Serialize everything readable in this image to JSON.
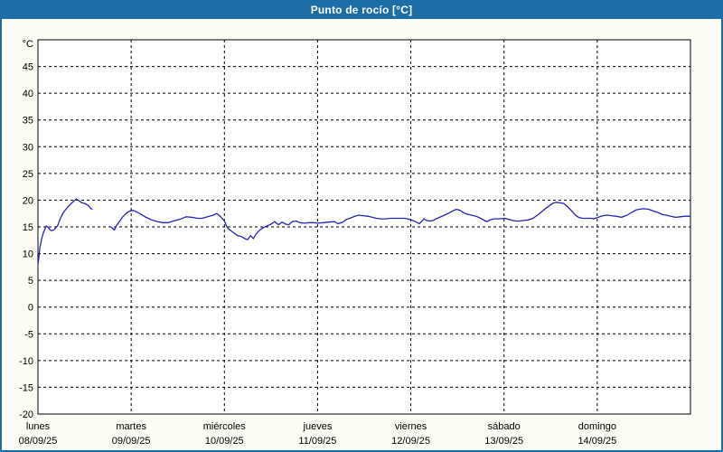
{
  "window": {
    "title": "Punto de rocío [°C]"
  },
  "colors": {
    "titlebar_bg": "#1d6da7",
    "titlebar_text": "#ffffff",
    "page_bg": "#fcfcf5",
    "outer_border": "#1d6da7",
    "plot_bg": "#ffffff",
    "grid": "#000000",
    "line": "#2323b8"
  },
  "chart_data": {
    "type": "line",
    "title": "Punto de rocío [°C]",
    "ylabel_unit": "°C",
    "xlabel": "",
    "ylim": [
      -20,
      50
    ],
    "yticks": [
      45,
      40,
      35,
      30,
      25,
      20,
      15,
      10,
      5,
      0,
      -5,
      -10,
      -15,
      -20
    ],
    "grid": true,
    "x_span_days": 7,
    "categories": [
      {
        "name": "lunes",
        "date": "08/09/25"
      },
      {
        "name": "martes",
        "date": "09/09/25"
      },
      {
        "name": "miércoles",
        "date": "10/09/25"
      },
      {
        "name": "jueves",
        "date": "11/09/25"
      },
      {
        "name": "viernes",
        "date": "12/09/25"
      },
      {
        "name": "sábado",
        "date": "13/09/25"
      },
      {
        "name": "domingo",
        "date": "14/09/25"
      }
    ],
    "series": [
      {
        "name": "punto de rocío",
        "color": "#2323b8",
        "segments": [
          [
            [
              0.0,
              7.9
            ],
            [
              0.01,
              9.3
            ],
            [
              0.02,
              11.1
            ],
            [
              0.04,
              12.8
            ],
            [
              0.06,
              14.0
            ],
            [
              0.09,
              15.2
            ],
            [
              0.11,
              14.9
            ],
            [
              0.14,
              14.3
            ],
            [
              0.17,
              14.4
            ],
            [
              0.21,
              15.2
            ],
            [
              0.24,
              16.6
            ],
            [
              0.27,
              17.6
            ],
            [
              0.3,
              18.3
            ],
            [
              0.33,
              18.9
            ],
            [
              0.37,
              19.6
            ],
            [
              0.41,
              20.2
            ],
            [
              0.44,
              19.9
            ],
            [
              0.47,
              19.5
            ],
            [
              0.5,
              19.4
            ],
            [
              0.54,
              19.0
            ],
            [
              0.57,
              18.4
            ],
            [
              0.58,
              18.3
            ]
          ],
          [
            [
              0.79,
              14.9
            ],
            [
              0.82,
              14.4
            ],
            [
              0.84,
              15.2
            ],
            [
              0.87,
              15.9
            ],
            [
              0.91,
              16.9
            ],
            [
              0.95,
              17.6
            ],
            [
              0.99,
              18.0
            ],
            [
              1.02,
              18.1
            ],
            [
              1.07,
              17.7
            ],
            [
              1.11,
              17.3
            ],
            [
              1.16,
              16.8
            ],
            [
              1.22,
              16.3
            ],
            [
              1.28,
              16.0
            ],
            [
              1.34,
              15.8
            ],
            [
              1.4,
              15.8
            ],
            [
              1.45,
              16.1
            ],
            [
              1.52,
              16.4
            ],
            [
              1.59,
              16.9
            ],
            [
              1.65,
              16.8
            ],
            [
              1.71,
              16.6
            ],
            [
              1.76,
              16.6
            ],
            [
              1.82,
              16.9
            ],
            [
              1.88,
              17.2
            ],
            [
              1.92,
              17.5
            ],
            [
              1.96,
              16.9
            ],
            [
              2.0,
              16.1
            ],
            [
              2.03,
              14.9
            ],
            [
              2.06,
              14.4
            ],
            [
              2.1,
              13.9
            ],
            [
              2.14,
              13.4
            ],
            [
              2.18,
              13.2
            ],
            [
              2.22,
              12.8
            ],
            [
              2.25,
              12.6
            ],
            [
              2.28,
              13.4
            ],
            [
              2.31,
              12.8
            ],
            [
              2.34,
              13.7
            ],
            [
              2.38,
              14.4
            ],
            [
              2.42,
              14.9
            ],
            [
              2.46,
              15.2
            ],
            [
              2.5,
              15.5
            ],
            [
              2.54,
              16.0
            ],
            [
              2.58,
              15.4
            ],
            [
              2.62,
              15.9
            ],
            [
              2.66,
              15.5
            ],
            [
              2.69,
              15.4
            ],
            [
              2.73,
              16.0
            ],
            [
              2.77,
              16.1
            ],
            [
              2.81,
              15.8
            ],
            [
              2.86,
              15.7
            ],
            [
              2.91,
              15.8
            ],
            [
              2.96,
              15.8
            ],
            [
              3.0,
              15.7
            ],
            [
              3.06,
              15.8
            ],
            [
              3.12,
              15.9
            ],
            [
              3.18,
              16.0
            ],
            [
              3.22,
              15.6
            ],
            [
              3.27,
              15.9
            ],
            [
              3.31,
              16.4
            ],
            [
              3.36,
              16.7
            ],
            [
              3.4,
              17.0
            ],
            [
              3.44,
              17.2
            ],
            [
              3.49,
              17.1
            ],
            [
              3.54,
              17.0
            ],
            [
              3.59,
              16.8
            ],
            [
              3.63,
              16.6
            ],
            [
              3.68,
              16.5
            ],
            [
              3.73,
              16.5
            ],
            [
              3.78,
              16.6
            ],
            [
              3.83,
              16.6
            ],
            [
              3.88,
              16.6
            ],
            [
              3.93,
              16.6
            ],
            [
              3.97,
              16.5
            ],
            [
              4.02,
              16.2
            ],
            [
              4.06,
              15.9
            ],
            [
              4.09,
              15.6
            ],
            [
              4.12,
              16.1
            ],
            [
              4.14,
              16.5
            ],
            [
              4.17,
              16.2
            ],
            [
              4.2,
              16.1
            ],
            [
              4.24,
              16.2
            ],
            [
              4.27,
              16.5
            ],
            [
              4.31,
              16.8
            ],
            [
              4.36,
              17.2
            ],
            [
              4.41,
              17.6
            ],
            [
              4.45,
              18.0
            ],
            [
              4.49,
              18.3
            ],
            [
              4.53,
              18.1
            ],
            [
              4.56,
              17.7
            ],
            [
              4.6,
              17.4
            ],
            [
              4.65,
              17.2
            ],
            [
              4.7,
              17.0
            ],
            [
              4.75,
              16.6
            ],
            [
              4.8,
              16.1
            ],
            [
              4.82,
              16.0
            ],
            [
              4.85,
              16.3
            ],
            [
              4.89,
              16.5
            ],
            [
              4.94,
              16.5
            ],
            [
              5.01,
              16.6
            ],
            [
              5.07,
              16.3
            ],
            [
              5.12,
              16.1
            ],
            [
              5.17,
              16.1
            ],
            [
              5.21,
              16.2
            ],
            [
              5.26,
              16.3
            ],
            [
              5.31,
              16.6
            ],
            [
              5.36,
              17.2
            ],
            [
              5.41,
              17.9
            ],
            [
              5.45,
              18.5
            ],
            [
              5.49,
              19.0
            ],
            [
              5.52,
              19.4
            ],
            [
              5.56,
              19.6
            ],
            [
              5.6,
              19.5
            ],
            [
              5.64,
              19.4
            ],
            [
              5.68,
              18.8
            ],
            [
              5.72,
              18.1
            ],
            [
              5.76,
              17.3
            ],
            [
              5.8,
              16.8
            ],
            [
              5.84,
              16.6
            ],
            [
              5.89,
              16.6
            ],
            [
              5.94,
              16.6
            ],
            [
              5.96,
              16.5
            ],
            [
              6.01,
              16.8
            ],
            [
              6.06,
              17.1
            ],
            [
              6.11,
              17.2
            ],
            [
              6.15,
              17.1
            ],
            [
              6.2,
              17.0
            ],
            [
              6.26,
              16.8
            ],
            [
              6.32,
              17.2
            ],
            [
              6.37,
              17.7
            ],
            [
              6.42,
              18.2
            ],
            [
              6.45,
              18.3
            ],
            [
              6.5,
              18.4
            ],
            [
              6.55,
              18.3
            ],
            [
              6.6,
              18.0
            ],
            [
              6.65,
              17.7
            ],
            [
              6.7,
              17.3
            ],
            [
              6.74,
              17.2
            ],
            [
              6.79,
              17.0
            ],
            [
              6.84,
              16.8
            ],
            [
              6.89,
              16.9
            ],
            [
              6.94,
              17.0
            ],
            [
              7.0,
              17.0
            ]
          ]
        ]
      }
    ]
  }
}
